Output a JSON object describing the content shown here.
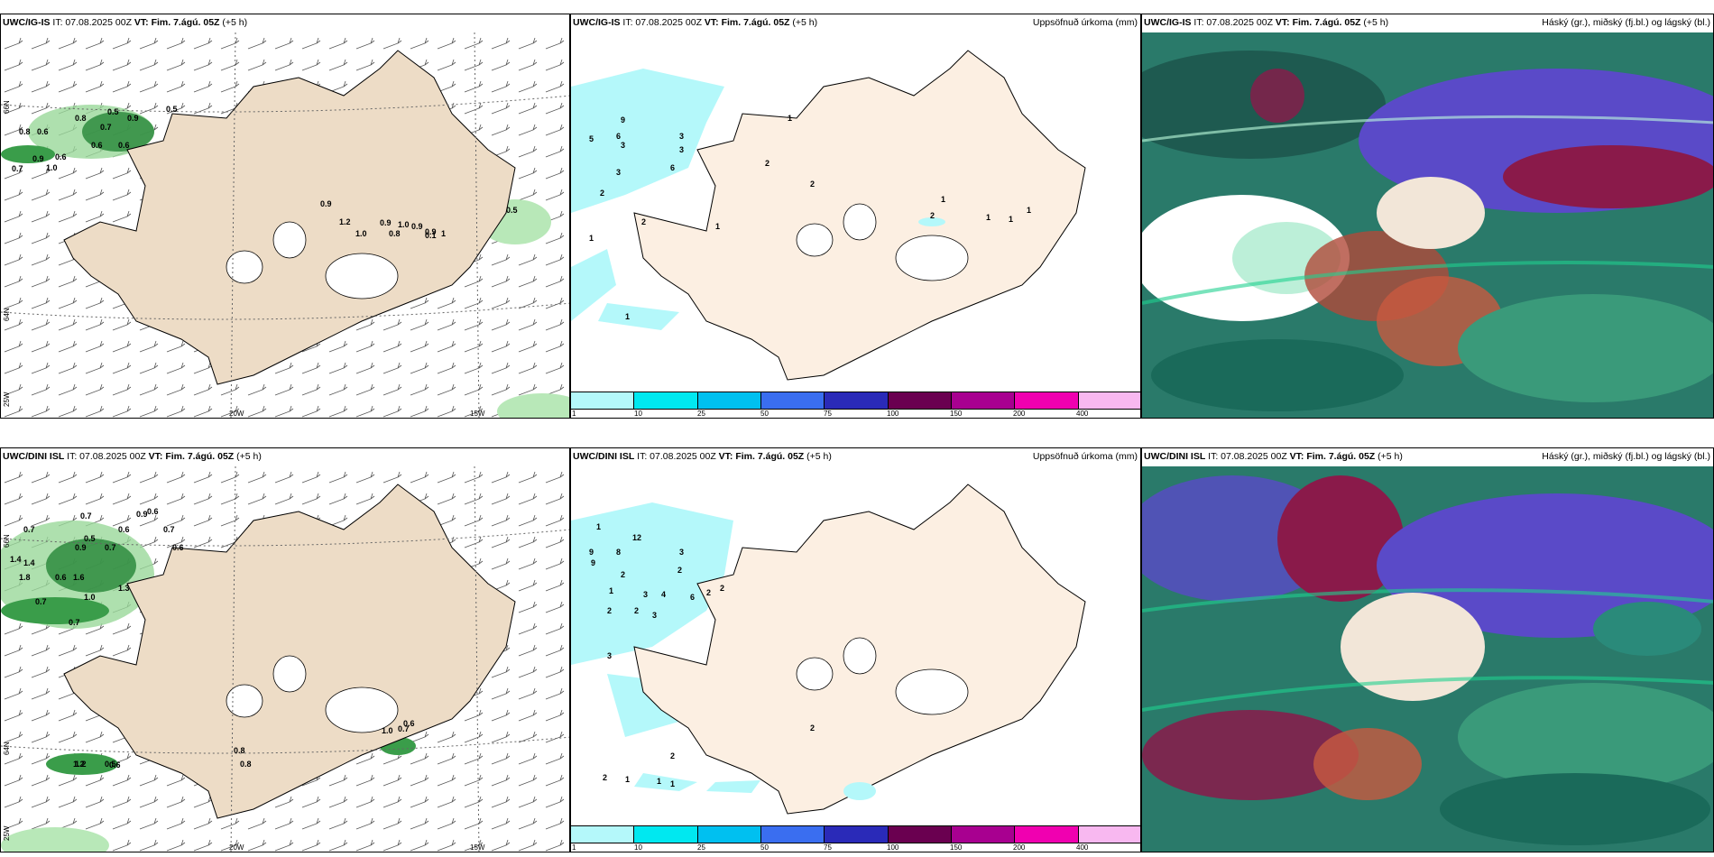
{
  "panels": {
    "top_left": {
      "model": "UWC/IG-IS",
      "it": "IT: 07.08.2025 00Z",
      "vt_label": "VT:",
      "vt_value": "Fim. 7.ágú. 05Z",
      "offset": "(+5 h)",
      "right": ""
    },
    "top_mid": {
      "model": "UWC/IG-IS",
      "it": "IT: 07.08.2025 00Z",
      "vt_label": "VT:",
      "vt_value": "Fim. 7.ágú. 05Z",
      "offset": "(+5 h)",
      "right": "Uppsöfnuð úrkoma (mm)"
    },
    "top_right": {
      "model": "UWC/IG-IS",
      "it": "IT: 07.08.2025 00Z",
      "vt_label": "VT:",
      "vt_value": "Fim. 7.ágú. 05Z",
      "offset": "(+5 h)",
      "right": "Háský (gr.), miðský (fj.bl.) og lágský (bl.)"
    },
    "bot_left": {
      "model": "UWC/DINI ISL",
      "it": "IT: 07.08.2025 00Z",
      "vt_label": "VT:",
      "vt_value": "Fim. 7.ágú. 05Z",
      "offset": "(+5 h)",
      "right": ""
    },
    "bot_mid": {
      "model": "UWC/DINI ISL",
      "it": "IT: 07.08.2025 00Z",
      "vt_label": "VT:",
      "vt_value": "Fim. 7.ágú. 05Z",
      "offset": "(+5 h)",
      "right": "Uppsöfnuð úrkoma (mm)"
    },
    "bot_right": {
      "model": "UWC/DINI ISL",
      "it": "IT: 07.08.2025 00Z",
      "vt_label": "VT:",
      "vt_value": "Fim. 7.ágú. 05Z",
      "offset": "(+5 h)",
      "right": "Háský (gr.), miðský (fj.bl.) og lágský (bl.)"
    }
  },
  "axis_labels": {
    "lat_66": "66N",
    "lat_64": "64N",
    "lon_25": "25W",
    "lon_20": "20W",
    "lon_15": "15W"
  },
  "colorbar": {
    "labels": [
      "1",
      "10",
      "25",
      "50",
      "75",
      "100",
      "150",
      "200",
      "400"
    ],
    "colors": [
      "#b4f8fa",
      "#00e8f0",
      "#00c0f0",
      "#3a6ef0",
      "#2a2ab8",
      "#6a0050",
      "#a80090",
      "#f000b0",
      "#f8b8f0"
    ]
  },
  "values": {
    "tl": [
      "0.8",
      "0.6",
      "0.7",
      "0.9",
      "0.6",
      "1.0",
      "0.5",
      "0.6",
      "0.8",
      "0.9",
      "0.7",
      "0.5",
      "0.6",
      "1.2",
      "0.9",
      "1.0",
      "0.9",
      "0.8",
      "1.0",
      "0.9",
      "0.9",
      "0.1",
      "1",
      "0.5"
    ],
    "tm": [
      "9",
      "5",
      "6",
      "3",
      "3",
      "3",
      "2",
      "3",
      "6",
      "2",
      "1",
      "2",
      "1",
      "1",
      "1",
      "2",
      "1",
      "1",
      "1",
      "2",
      "1"
    ],
    "bl": [
      "0.7",
      "0.7",
      "0.9",
      "0.6",
      "0.7",
      "1.4",
      "1.4",
      "1.8",
      "0.5",
      "0.6",
      "0.6",
      "1.6",
      "0.9",
      "0.7",
      "1.0",
      "0.7",
      "0.7",
      "0.6",
      "1.2",
      "0.5",
      "1.3",
      "1.0",
      "0.7",
      "0.6",
      "1.2",
      "0.6",
      "0.8",
      "0.8"
    ],
    "bm": [
      "1",
      "9",
      "9",
      "12",
      "8",
      "2",
      "1",
      "2",
      "3",
      "4",
      "6",
      "2",
      "3",
      "2",
      "3",
      "3",
      "2",
      "2",
      "2",
      "1",
      "1",
      "2",
      "2",
      "1"
    ]
  }
}
